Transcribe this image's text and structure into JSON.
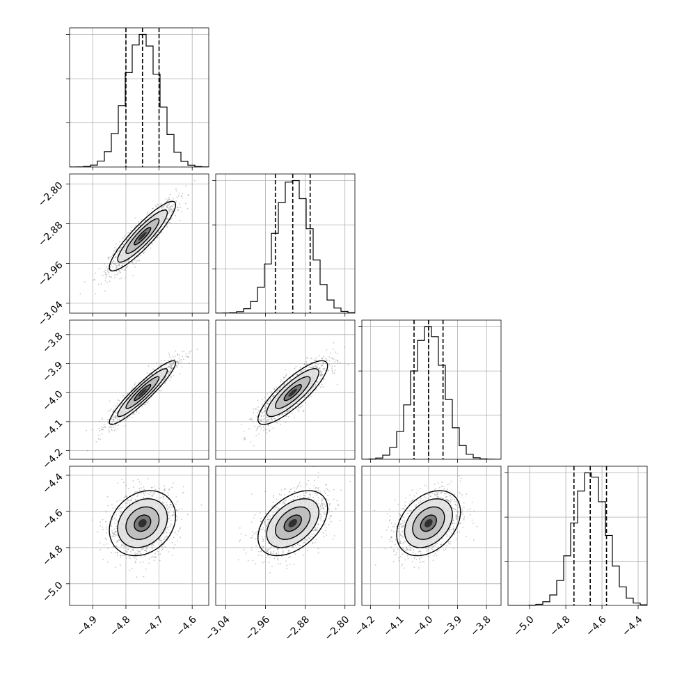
{
  "chart_data": {
    "type": "corner",
    "grid": true,
    "colors": {
      "line": "#000000",
      "grid": "#b0b0b0",
      "points": "#808080"
    },
    "params": [
      {
        "range": [
          -4.97,
          -4.55
        ],
        "mean": -4.75,
        "sd": 0.05,
        "ticks": [
          -4.9,
          -4.8,
          -4.7,
          -4.6
        ],
        "tick_labels": [
          "−4.9",
          "−4.8",
          "−4.7",
          "−4.6"
        ],
        "quantiles": [
          -4.8,
          -4.75,
          -4.7
        ]
      },
      {
        "range": [
          -3.06,
          -2.78
        ],
        "mean": -2.905,
        "sd": 0.035,
        "ticks": [
          -3.04,
          -2.96,
          -2.88,
          -2.8
        ],
        "tick_labels": [
          "−3.04",
          "−2.96",
          "−2.88",
          "−2.80"
        ],
        "quantiles": [
          -2.94,
          -2.905,
          -2.87
        ]
      },
      {
        "range": [
          -4.23,
          -3.75
        ],
        "mean": -4.0,
        "sd": 0.055,
        "ticks": [
          -4.2,
          -4.1,
          -4.0,
          -3.9,
          -3.8
        ],
        "tick_labels": [
          "−4.2",
          "−4.1",
          "−4.0",
          "−3.9",
          "−3.8"
        ],
        "quantiles": [
          -4.05,
          -4.0,
          -3.95
        ]
      },
      {
        "range": [
          -5.12,
          -4.35
        ],
        "mean": -4.665,
        "sd": 0.09,
        "ticks": [
          -5.0,
          -4.8,
          -4.6,
          -4.4
        ],
        "tick_labels": [
          "−5.0",
          "−4.8",
          "−4.6",
          "−4.4"
        ],
        "quantiles": [
          -4.755,
          -4.665,
          -4.575
        ]
      }
    ],
    "correlations": [
      [
        1.0,
        0.9,
        0.93,
        0.22
      ],
      [
        0.9,
        1.0,
        0.84,
        0.45
      ],
      [
        0.93,
        0.84,
        1.0,
        0.35
      ],
      [
        0.22,
        0.45,
        0.35,
        1.0
      ]
    ],
    "histogram_bins": 20,
    "contour_levels_sigma": [
      0.5,
      1.0,
      1.5,
      2.0
    ],
    "samples_per_panel": 1200
  }
}
